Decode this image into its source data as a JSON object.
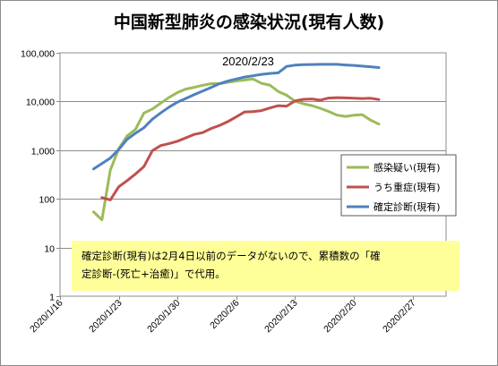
{
  "chart_data": {
    "type": "line",
    "title": "中国新型肺炎の感染状況(現有人数)",
    "y_scale": "log",
    "ylim": [
      1,
      100000
    ],
    "y_ticks": [
      "1",
      "10",
      "100",
      "1,000",
      "10,000",
      "100,000"
    ],
    "xlim": [
      "2020-01-16",
      "2020-03-02"
    ],
    "x_ticks": [
      "2020/1/16",
      "2020/1/23",
      "2020/1/30",
      "2020/2/6",
      "2020/2/13",
      "2020/2/20",
      "2020/2/27"
    ],
    "grid": "horizontal",
    "legend_position": "right",
    "annotation": "2020/2/23",
    "note": "確定診断(現有)は2月4日以前のデータがないので、累積数の「確定診断-(死亡+治癒)」で代用。",
    "series": [
      {
        "name": "感染疑い(現有)",
        "color": "#9bbb59",
        "points": [
          [
            "2020-01-20",
            54
          ],
          [
            "2020-01-21",
            37
          ],
          [
            "2020-01-22",
            393
          ],
          [
            "2020-01-23",
            1072
          ],
          [
            "2020-01-24",
            1965
          ],
          [
            "2020-01-25",
            2684
          ],
          [
            "2020-01-26",
            5794
          ],
          [
            "2020-01-27",
            6973
          ],
          [
            "2020-01-28",
            9239
          ],
          [
            "2020-01-29",
            12167
          ],
          [
            "2020-01-30",
            15238
          ],
          [
            "2020-01-31",
            17988
          ],
          [
            "2020-02-01",
            19544
          ],
          [
            "2020-02-02",
            21558
          ],
          [
            "2020-02-03",
            23214
          ],
          [
            "2020-02-04",
            23260
          ],
          [
            "2020-02-05",
            24702
          ],
          [
            "2020-02-06",
            26359
          ],
          [
            "2020-02-07",
            27657
          ],
          [
            "2020-02-08",
            28942
          ],
          [
            "2020-02-09",
            23589
          ],
          [
            "2020-02-10",
            21675
          ],
          [
            "2020-02-11",
            16067
          ],
          [
            "2020-02-12",
            13435
          ],
          [
            "2020-02-13",
            10109
          ],
          [
            "2020-02-14",
            8969
          ],
          [
            "2020-02-15",
            8228
          ],
          [
            "2020-02-16",
            7264
          ],
          [
            "2020-02-17",
            6242
          ],
          [
            "2020-02-18",
            5248
          ],
          [
            "2020-02-19",
            4922
          ],
          [
            "2020-02-20",
            5206
          ],
          [
            "2020-02-21",
            5365
          ],
          [
            "2020-02-22",
            4148
          ],
          [
            "2020-02-23",
            3434
          ]
        ]
      },
      {
        "name": "うち重症(現有)",
        "color": "#c0504d",
        "points": [
          [
            "2020-01-21",
            106
          ],
          [
            "2020-01-22",
            95
          ],
          [
            "2020-01-23",
            177
          ],
          [
            "2020-01-24",
            237
          ],
          [
            "2020-01-25",
            324
          ],
          [
            "2020-01-26",
            461
          ],
          [
            "2020-01-27",
            976
          ],
          [
            "2020-01-28",
            1239
          ],
          [
            "2020-01-29",
            1370
          ],
          [
            "2020-01-30",
            1527
          ],
          [
            "2020-01-31",
            1795
          ],
          [
            "2020-02-01",
            2110
          ],
          [
            "2020-02-02",
            2296
          ],
          [
            "2020-02-03",
            2788
          ],
          [
            "2020-02-04",
            3219
          ],
          [
            "2020-02-05",
            3859
          ],
          [
            "2020-02-06",
            4821
          ],
          [
            "2020-02-07",
            6101
          ],
          [
            "2020-02-08",
            6188
          ],
          [
            "2020-02-09",
            6484
          ],
          [
            "2020-02-10",
            7333
          ],
          [
            "2020-02-11",
            8204
          ],
          [
            "2020-02-12",
            8030
          ],
          [
            "2020-02-13",
            10204
          ],
          [
            "2020-02-14",
            11053
          ],
          [
            "2020-02-15",
            11272
          ],
          [
            "2020-02-16",
            10644
          ],
          [
            "2020-02-17",
            11741
          ],
          [
            "2020-02-18",
            11977
          ],
          [
            "2020-02-19",
            11864
          ],
          [
            "2020-02-20",
            11633
          ],
          [
            "2020-02-21",
            11477
          ],
          [
            "2020-02-22",
            11633
          ],
          [
            "2020-02-23",
            10968
          ]
        ]
      },
      {
        "name": "確定診断(現有)",
        "color": "#4f81bd",
        "points": [
          [
            "2020-01-20",
            412
          ],
          [
            "2020-01-21",
            532
          ],
          [
            "2020-01-22",
            688
          ],
          [
            "2020-01-23",
            1034
          ],
          [
            "2020-01-24",
            1678
          ],
          [
            "2020-01-25",
            2228
          ],
          [
            "2020-01-26",
            2895
          ],
          [
            "2020-01-27",
            4321
          ],
          [
            "2020-01-28",
            5814
          ],
          [
            "2020-01-29",
            7644
          ],
          [
            "2020-01-30",
            9719
          ],
          [
            "2020-01-31",
            11539
          ],
          [
            "2020-02-01",
            13795
          ],
          [
            "2020-02-02",
            16317
          ],
          [
            "2020-02-03",
            19431
          ],
          [
            "2020-02-04",
            23214
          ],
          [
            "2020-02-05",
            26302
          ],
          [
            "2020-02-06",
            28985
          ],
          [
            "2020-02-07",
            31774
          ],
          [
            "2020-02-08",
            33738
          ],
          [
            "2020-02-09",
            35982
          ],
          [
            "2020-02-10",
            37626
          ],
          [
            "2020-02-11",
            38800
          ],
          [
            "2020-02-12",
            52526
          ],
          [
            "2020-02-13",
            55748
          ],
          [
            "2020-02-14",
            56873
          ],
          [
            "2020-02-15",
            57416
          ],
          [
            "2020-02-16",
            57934
          ],
          [
            "2020-02-17",
            58016
          ],
          [
            "2020-02-18",
            57805
          ],
          [
            "2020-02-19",
            56303
          ],
          [
            "2020-02-20",
            54965
          ],
          [
            "2020-02-21",
            53284
          ],
          [
            "2020-02-22",
            51606
          ],
          [
            "2020-02-23",
            49824
          ]
        ]
      }
    ]
  }
}
